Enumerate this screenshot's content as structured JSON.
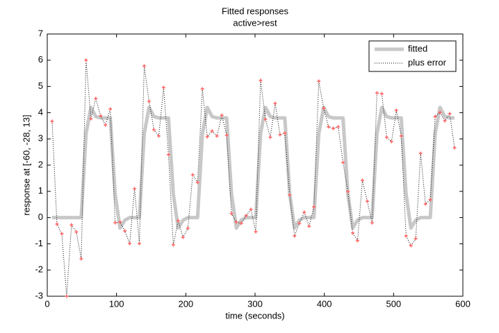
{
  "chart_data": {
    "type": "line",
    "title": "Fitted responses",
    "subtitle": "active>rest",
    "xlabel": "time (seconds)",
    "ylabel": "response at [-60, -28, 13]",
    "xlim": [
      0,
      600
    ],
    "ylim": [
      -3,
      7
    ],
    "xticks": [
      0,
      100,
      200,
      300,
      400,
      500,
      600
    ],
    "yticks": [
      -3,
      -2,
      -1,
      0,
      1,
      2,
      3,
      4,
      5,
      6,
      7
    ],
    "legend_position": "upper right",
    "x": [
      7,
      14,
      21,
      28,
      35,
      42,
      49,
      56,
      63,
      70,
      77,
      84,
      91,
      98,
      105,
      112,
      119,
      126,
      133,
      140,
      147,
      154,
      161,
      168,
      175,
      182,
      189,
      196,
      203,
      210,
      217,
      224,
      231,
      238,
      245,
      252,
      259,
      266,
      273,
      280,
      287,
      294,
      301,
      308,
      315,
      322,
      329,
      336,
      343,
      350,
      357,
      364,
      371,
      378,
      385,
      392,
      399,
      406,
      413,
      420,
      427,
      434,
      441,
      448,
      455,
      462,
      469,
      476,
      483,
      490,
      497,
      504,
      511,
      518,
      525,
      532,
      539,
      546,
      553,
      560,
      567,
      574,
      581,
      588
    ],
    "series": [
      {
        "name": "fitted",
        "color": "#c8c8c8",
        "style": "solid",
        "values": [
          0,
          0,
          0,
          0,
          0,
          0,
          0,
          3.2,
          4.2,
          3.85,
          3.8,
          3.8,
          3.8,
          0.9,
          -0.4,
          -0.1,
          0,
          0,
          0,
          3.2,
          4.2,
          3.85,
          3.8,
          3.8,
          3.8,
          0.9,
          -0.4,
          -0.1,
          0,
          0,
          0,
          3.2,
          4.2,
          3.85,
          3.8,
          3.8,
          3.8,
          0.9,
          -0.4,
          -0.1,
          0,
          0,
          0,
          3.2,
          4.2,
          3.85,
          3.8,
          3.8,
          3.8,
          0.9,
          -0.4,
          -0.1,
          0,
          0,
          0,
          3.2,
          4.2,
          3.85,
          3.8,
          3.8,
          3.8,
          0.9,
          -0.4,
          -0.1,
          0,
          0,
          0,
          3.2,
          4.2,
          3.85,
          3.8,
          3.8,
          3.8,
          0.9,
          -0.4,
          -0.1,
          0,
          0,
          0,
          3.2,
          4.2,
          3.85,
          3.8,
          3.8
        ]
      },
      {
        "name": "plus error",
        "color": "#000000",
        "marker_color": "#ff6666",
        "style": "dotted",
        "values": [
          3.67,
          -0.25,
          -0.62,
          -3.0,
          -0.28,
          -0.55,
          -1.57,
          6.0,
          3.77,
          4.54,
          3.88,
          3.53,
          4.14,
          -0.2,
          -0.17,
          -0.51,
          -0.99,
          1.1,
          -0.99,
          5.78,
          4.43,
          3.35,
          3.11,
          4.96,
          2.4,
          -1.04,
          -0.12,
          -0.75,
          -0.41,
          1.63,
          1.34,
          4.91,
          3.08,
          3.3,
          3.11,
          3.9,
          3.14,
          0.15,
          -0.17,
          -0.22,
          0.07,
          0.31,
          -0.54,
          5.23,
          3.75,
          3.06,
          4.35,
          3.16,
          3.22,
          0.86,
          -0.7,
          -0.22,
          0.2,
          -0.33,
          0.41,
          5.2,
          4.17,
          3.46,
          3.4,
          3.46,
          2.1,
          0.99,
          -0.59,
          -0.88,
          1.42,
          0.62,
          -0.2,
          4.75,
          4.72,
          3.06,
          2.9,
          4.09,
          3.11,
          -0.7,
          -1.07,
          -0.8,
          2.45,
          0.52,
          0.68,
          3.85,
          4.01,
          3.69,
          3.96,
          2.66
        ]
      }
    ]
  }
}
